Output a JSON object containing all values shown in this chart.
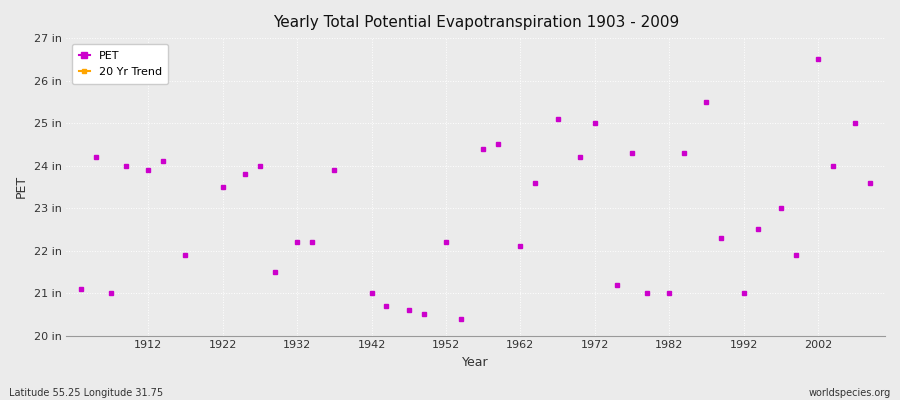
{
  "title": "Yearly Total Potential Evapotranspiration 1903 - 2009",
  "xlabel": "Year",
  "ylabel": "PET",
  "footnote_left": "Latitude 55.25 Longitude 31.75",
  "footnote_right": "worldspecies.org",
  "ylim": [
    20,
    27
  ],
  "ytick_labels": [
    "20 in",
    "21 in",
    "22 in",
    "23 in",
    "24 in",
    "25 in",
    "26 in",
    "27 in"
  ],
  "ytick_values": [
    20,
    21,
    22,
    23,
    24,
    25,
    26,
    27
  ],
  "line_color": "#CC00CC",
  "trend_color": "#FFA500",
  "bg_color": "#EBEBEB",
  "grid_color": "#FFFFFF",
  "years": [
    1903,
    1905,
    1907,
    1909,
    1912,
    1914,
    1917,
    1922,
    1925,
    1927,
    1929,
    1932,
    1934,
    1937,
    1942,
    1944,
    1947,
    1949,
    1952,
    1954,
    1957,
    1959,
    1962,
    1964,
    1967,
    1970,
    1972,
    1975,
    1977,
    1979,
    1982,
    1984,
    1987,
    1989,
    1992,
    1994,
    1997,
    1999,
    2002,
    2004,
    2007,
    2009
  ],
  "all_years": [
    1903,
    1904,
    1905,
    1906,
    1907,
    1908,
    1909,
    1910,
    1911,
    1912,
    1913,
    1914,
    1915,
    1916,
    1917,
    1918,
    1919,
    1920,
    1921,
    1922,
    1923,
    1924,
    1925,
    1926,
    1927,
    1928,
    1929,
    1930,
    1931,
    1932,
    1933,
    1934,
    1935,
    1936,
    1937,
    1938,
    1939,
    1940,
    1941,
    1942,
    1943,
    1944,
    1945,
    1946,
    1947,
    1948,
    1949,
    1950,
    1951,
    1952,
    1953,
    1954,
    1955,
    1956,
    1957,
    1958,
    1959,
    1960,
    1961,
    1962,
    1963,
    1964,
    1965,
    1966,
    1967,
    1968,
    1969,
    1970,
    1971,
    1972,
    1973,
    1974,
    1975,
    1976,
    1977,
    1978,
    1979,
    1980,
    1981,
    1982,
    1983,
    1984,
    1985,
    1986,
    1987,
    1988,
    1989,
    1990,
    1991,
    1992,
    1993,
    1994,
    1995,
    1996,
    1997,
    1998,
    1999,
    2000,
    2001,
    2002,
    2003,
    2004,
    2005,
    2006,
    2007,
    2008,
    2009
  ],
  "all_values": [
    21.1,
    null,
    24.2,
    null,
    21.0,
    null,
    24.0,
    null,
    null,
    23.9,
    null,
    24.1,
    null,
    null,
    21.9,
    null,
    null,
    null,
    null,
    23.5,
    null,
    null,
    23.8,
    null,
    24.0,
    null,
    21.5,
    null,
    null,
    22.2,
    null,
    22.2,
    null,
    null,
    23.9,
    null,
    null,
    null,
    null,
    21.0,
    null,
    20.7,
    null,
    null,
    20.6,
    null,
    20.5,
    null,
    null,
    22.2,
    null,
    20.4,
    null,
    null,
    24.4,
    null,
    24.5,
    null,
    null,
    22.1,
    null,
    23.6,
    null,
    null,
    25.1,
    null,
    null,
    24.2,
    null,
    25.0,
    null,
    null,
    21.2,
    null,
    24.3,
    null,
    21.0,
    null,
    null,
    21.0,
    null,
    24.3,
    null,
    null,
    25.5,
    null,
    22.3,
    null,
    null,
    21.0,
    null,
    22.5,
    null,
    null,
    23.0,
    null,
    21.9,
    null,
    null,
    26.5,
    null,
    24.0,
    null,
    null,
    25.0,
    null,
    23.6
  ]
}
